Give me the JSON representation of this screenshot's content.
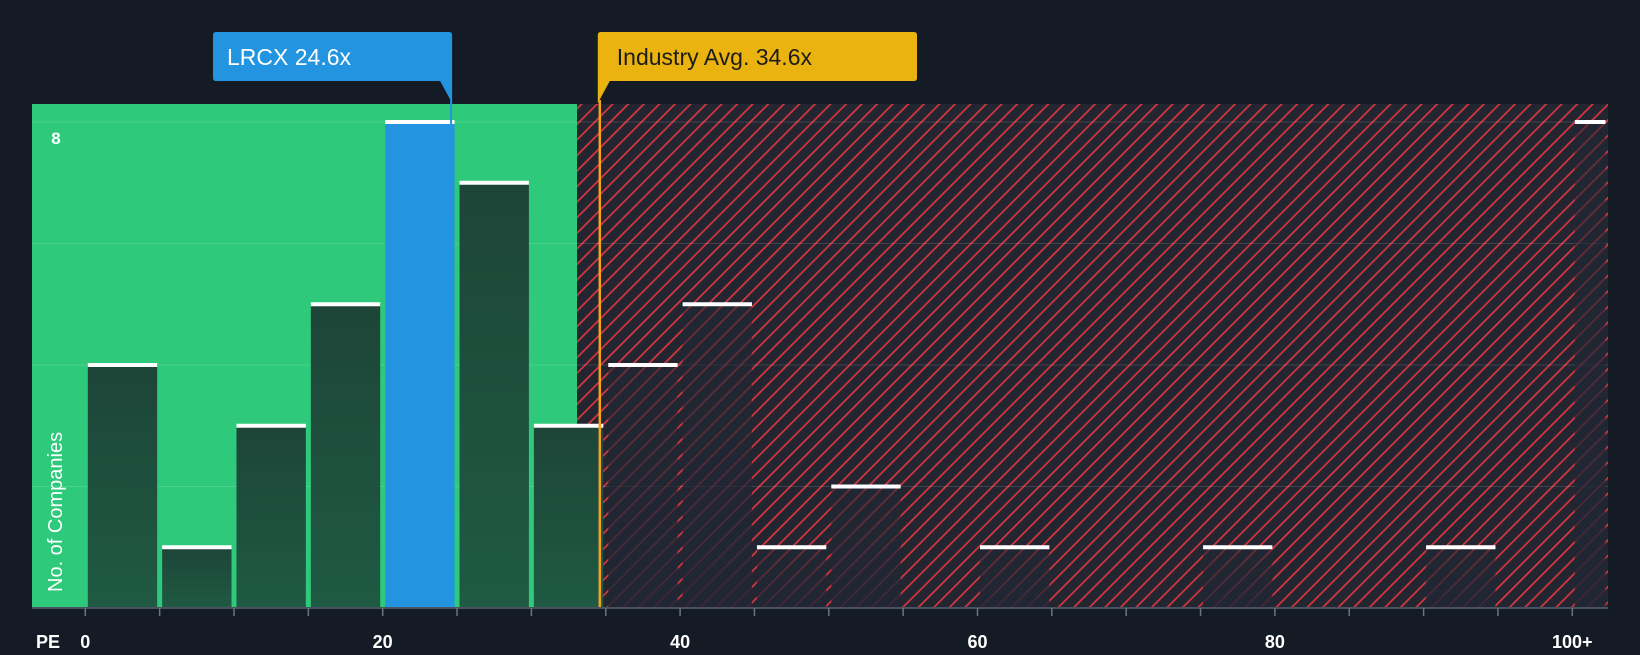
{
  "chart_data": {
    "type": "bar",
    "x_label": "PE",
    "y_label": "No. of Companies",
    "x_ticks": [
      "0",
      "20",
      "40",
      "60",
      "80",
      "100+"
    ],
    "x_tick_values": [
      0,
      20,
      40,
      60,
      80,
      100
    ],
    "y_max_label": "8",
    "y_ticks": [
      0,
      2,
      4,
      6,
      8
    ],
    "ylim": [
      0,
      8
    ],
    "xlim": [
      -3.6,
      102.4
    ],
    "bin_width": 5,
    "bins": [
      {
        "x0": 0,
        "x1": 5,
        "count": 4
      },
      {
        "x0": 5,
        "x1": 10,
        "count": 1
      },
      {
        "x0": 10,
        "x1": 15,
        "count": 3
      },
      {
        "x0": 15,
        "x1": 20,
        "count": 5
      },
      {
        "x0": 20,
        "x1": 25,
        "count": 8,
        "highlight": true
      },
      {
        "x0": 25,
        "x1": 30,
        "count": 7
      },
      {
        "x0": 30,
        "x1": 35,
        "count": 3
      },
      {
        "x0": 35,
        "x1": 40,
        "count": 4
      },
      {
        "x0": 40,
        "x1": 45,
        "count": 5
      },
      {
        "x0": 45,
        "x1": 50,
        "count": 1
      },
      {
        "x0": 50,
        "x1": 55,
        "count": 2
      },
      {
        "x0": 60,
        "x1": 65,
        "count": 1
      },
      {
        "x0": 75,
        "x1": 80,
        "count": 1
      },
      {
        "x0": 90,
        "x1": 95,
        "count": 1
      },
      {
        "x0": 100,
        "x1": 102.4,
        "count": 8
      }
    ],
    "company": {
      "label": "LRCX 24.6x",
      "value": 24.6
    },
    "industry": {
      "label": "Industry Avg. 34.6x",
      "value": 34.6
    },
    "colors": {
      "background": "#151b24",
      "fair_zone": "#2ec97a",
      "bar_fill": "#1e4a3d",
      "bar_highlight": "#2394e0",
      "overvalued_hatch": "#d9363e",
      "overvalued_fill": "#232631",
      "industry_line": "#f5a11d",
      "industry_callout": "#eab30f",
      "bar_cap": "#ffffff",
      "axis_text": "#ffffff"
    }
  }
}
